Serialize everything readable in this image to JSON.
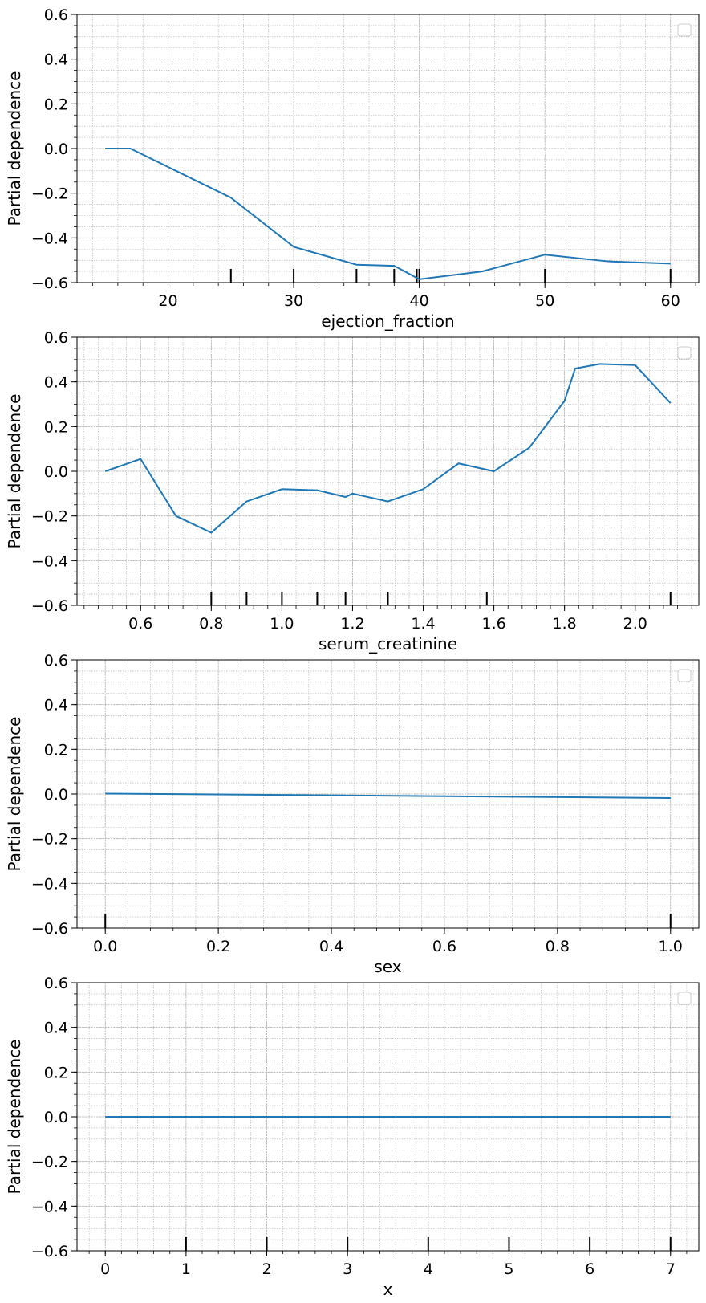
{
  "colors": {
    "line": "#1f77b4",
    "grid": "#b0b0b0",
    "axis": "#000000",
    "legend_border": "#cccccc"
  },
  "chart_data": [
    {
      "type": "line",
      "xlabel": "ejection_fraction",
      "ylabel": "Partial dependence",
      "xlim": [
        12.75,
        62.25
      ],
      "ylim": [
        -0.6,
        0.6
      ],
      "xticks": [
        20,
        30,
        40,
        50,
        60
      ],
      "xtick_labels": [
        "20",
        "30",
        "40",
        "50",
        "60"
      ],
      "yticks": [
        -0.6,
        -0.4,
        -0.2,
        0.0,
        0.2,
        0.4,
        0.6
      ],
      "ytick_labels": [
        "−0.6",
        "−0.4",
        "−0.2",
        "0.0",
        "0.2",
        "0.4",
        "0.6"
      ],
      "grid": true,
      "minor_grid": true,
      "legend": "top-right (empty)",
      "x": [
        15,
        17,
        25,
        30,
        35,
        38,
        40,
        45,
        50,
        55,
        60
      ],
      "y": [
        0.0,
        0.0,
        -0.22,
        -0.44,
        -0.52,
        -0.525,
        -0.585,
        -0.55,
        -0.475,
        -0.505,
        -0.515
      ],
      "deciles": [
        25,
        30,
        35,
        38,
        39.8,
        40,
        50,
        60
      ]
    },
    {
      "type": "line",
      "xlabel": "serum_creatinine",
      "ylabel": "Partial dependence",
      "xlim": [
        0.42,
        2.18
      ],
      "ylim": [
        -0.6,
        0.6
      ],
      "xticks": [
        0.6,
        0.8,
        1.0,
        1.2,
        1.4,
        1.6,
        1.8,
        2.0
      ],
      "xtick_labels": [
        "0.6",
        "0.8",
        "1.0",
        "1.2",
        "1.4",
        "1.6",
        "1.8",
        "2.0"
      ],
      "yticks": [
        -0.6,
        -0.4,
        -0.2,
        0.0,
        0.2,
        0.4,
        0.6
      ],
      "ytick_labels": [
        "−0.6",
        "−0.4",
        "−0.2",
        "0.0",
        "0.2",
        "0.4",
        "0.6"
      ],
      "grid": true,
      "minor_grid": true,
      "legend": "top-right (empty)",
      "x": [
        0.5,
        0.6,
        0.7,
        0.8,
        0.9,
        1.0,
        1.1,
        1.18,
        1.2,
        1.3,
        1.4,
        1.5,
        1.6,
        1.7,
        1.8,
        1.83,
        1.9,
        2.0,
        2.1
      ],
      "y": [
        0.0,
        0.055,
        -0.2,
        -0.275,
        -0.135,
        -0.08,
        -0.085,
        -0.115,
        -0.1,
        -0.135,
        -0.08,
        0.035,
        0.0,
        0.105,
        0.315,
        0.46,
        0.48,
        0.475,
        0.305
      ],
      "deciles": [
        0.8,
        0.9,
        1.0,
        1.1,
        1.18,
        1.3,
        1.58,
        2.1
      ]
    },
    {
      "type": "line",
      "xlabel": "sex",
      "ylabel": "Partial dependence",
      "xlim": [
        -0.05,
        1.05
      ],
      "ylim": [
        -0.6,
        0.6
      ],
      "xticks": [
        0.0,
        0.2,
        0.4,
        0.6,
        0.8,
        1.0
      ],
      "xtick_labels": [
        "0.0",
        "0.2",
        "0.4",
        "0.6",
        "0.8",
        "1.0"
      ],
      "yticks": [
        -0.6,
        -0.4,
        -0.2,
        0.0,
        0.2,
        0.4,
        0.6
      ],
      "ytick_labels": [
        "−0.6",
        "−0.4",
        "−0.2",
        "0.0",
        "0.2",
        "0.4",
        "0.6"
      ],
      "grid": true,
      "minor_grid": true,
      "legend": "top-right (empty)",
      "x": [
        0.0,
        1.0
      ],
      "y": [
        0.002,
        -0.018
      ],
      "deciles": [
        0.0,
        1.0
      ]
    },
    {
      "type": "line",
      "xlabel": "x",
      "ylabel": "Partial dependence",
      "xlim": [
        -0.35,
        7.35
      ],
      "ylim": [
        -0.6,
        0.6
      ],
      "xticks": [
        0,
        1,
        2,
        3,
        4,
        5,
        6,
        7
      ],
      "xtick_labels": [
        "0",
        "1",
        "2",
        "3",
        "4",
        "5",
        "6",
        "7"
      ],
      "yticks": [
        -0.6,
        -0.4,
        -0.2,
        0.0,
        0.2,
        0.4,
        0.6
      ],
      "ytick_labels": [
        "−0.6",
        "−0.4",
        "−0.2",
        "0.0",
        "0.2",
        "0.4",
        "0.6"
      ],
      "grid": true,
      "minor_grid": true,
      "legend": "top-right (empty)",
      "x": [
        0,
        7
      ],
      "y": [
        0.0,
        0.0
      ],
      "deciles": [
        1,
        2,
        3,
        4,
        5,
        6,
        7
      ]
    }
  ]
}
